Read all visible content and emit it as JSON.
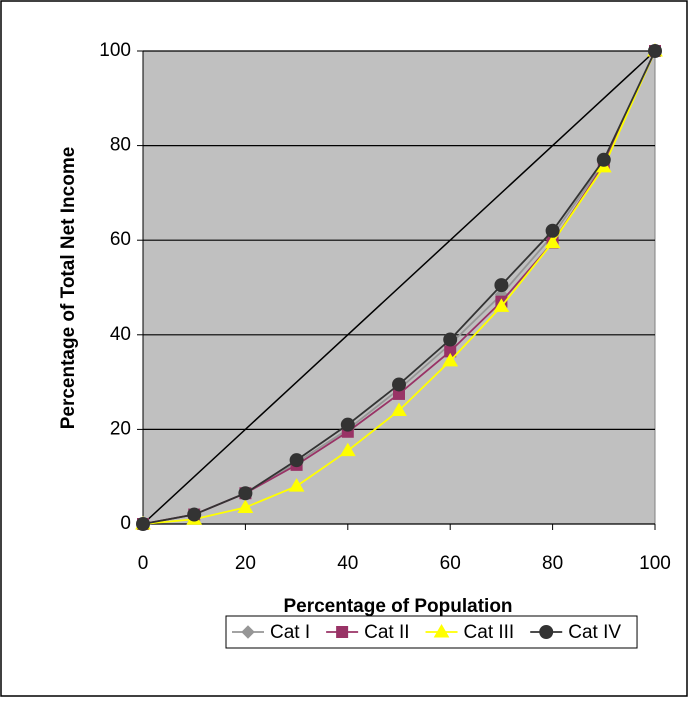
{
  "chart_data": {
    "type": "line",
    "x_label": "Percentage of Population",
    "y_label": "Percentage of Total Net Income",
    "x": [
      0,
      10,
      20,
      30,
      40,
      50,
      60,
      70,
      80,
      90,
      100
    ],
    "series": [
      {
        "name": "Cat I",
        "color": "#969696",
        "marker": "diamond",
        "values": [
          0,
          2,
          6.5,
          13,
          20,
          28.5,
          38,
          48.5,
          61,
          76.5,
          100
        ]
      },
      {
        "name": "Cat II",
        "color": "#993366",
        "marker": "square",
        "values": [
          0,
          2,
          6.5,
          12.5,
          19.5,
          27.5,
          36.5,
          47,
          59.5,
          76,
          100
        ]
      },
      {
        "name": "Cat III",
        "color": "#ffff00",
        "marker": "triangle",
        "values": [
          0,
          1,
          3.5,
          8,
          15.5,
          24,
          34.5,
          46,
          59.5,
          75.5,
          100
        ]
      },
      {
        "name": "Cat IV",
        "color": "#333333",
        "marker": "circle",
        "values": [
          0,
          2,
          6.5,
          13.5,
          21,
          29.5,
          39,
          50.5,
          62,
          77,
          100
        ]
      }
    ],
    "equality_line": {
      "x": [
        0,
        100
      ],
      "values": [
        0,
        100
      ],
      "color": "#000000"
    },
    "xlim": [
      0,
      100
    ],
    "xticks": [
      0,
      20,
      40,
      60,
      80,
      100
    ],
    "ylim": [
      0,
      100
    ],
    "yticks": [
      0,
      20,
      40,
      60,
      80,
      100
    ],
    "grid": true,
    "plot_background": "#c0c0c0",
    "legend": "bottom"
  }
}
